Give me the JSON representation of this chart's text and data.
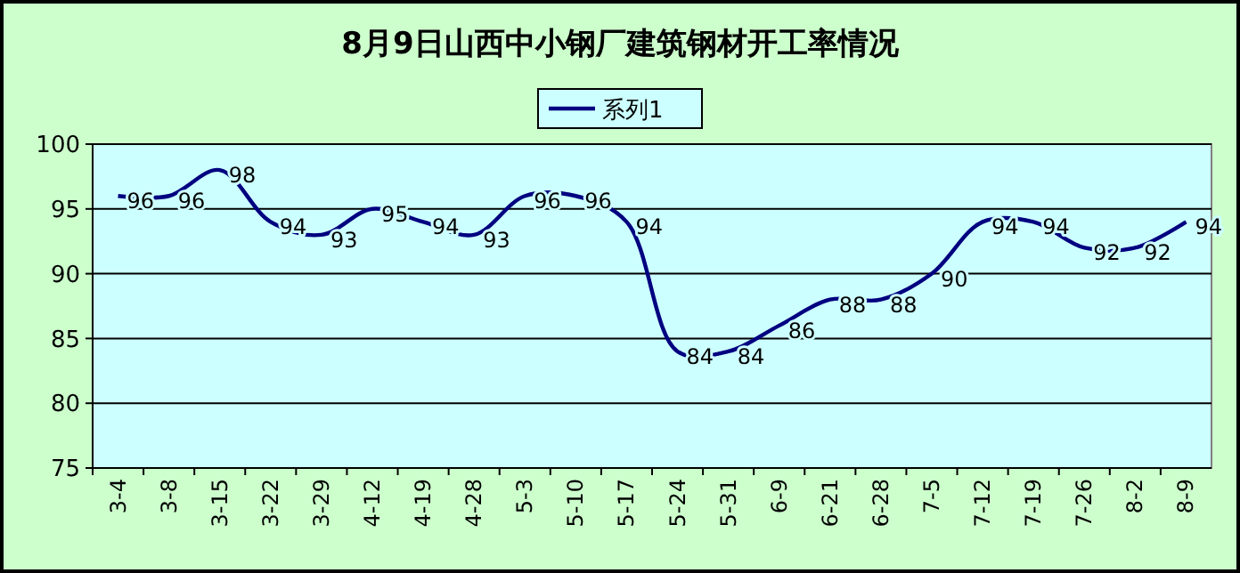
{
  "chart_data": {
    "type": "line",
    "title": "8月9日山西中小钢厂建筑钢材开工率情况",
    "categories": [
      "3-4",
      "3-8",
      "3-15",
      "3-22",
      "3-29",
      "4-12",
      "4-19",
      "4-28",
      "5-3",
      "5-10",
      "5-17",
      "5-24",
      "5-31",
      "6-9",
      "6-21",
      "6-28",
      "7-5",
      "7-12",
      "7-19",
      "7-26",
      "8-2",
      "8-9"
    ],
    "series": [
      {
        "name": "系列1",
        "color": "#000080",
        "values": [
          96,
          96,
          98,
          94,
          93,
          95,
          94,
          93,
          96,
          96,
          94,
          84,
          84,
          86,
          88,
          88,
          90,
          94,
          94,
          92,
          92,
          94
        ]
      }
    ],
    "ylim": [
      75,
      100
    ],
    "yticks": [
      75,
      80,
      85,
      90,
      95,
      100
    ],
    "grid": "y",
    "legend": "top",
    "data_labels": true,
    "marker": "none",
    "line_style": "solid"
  }
}
